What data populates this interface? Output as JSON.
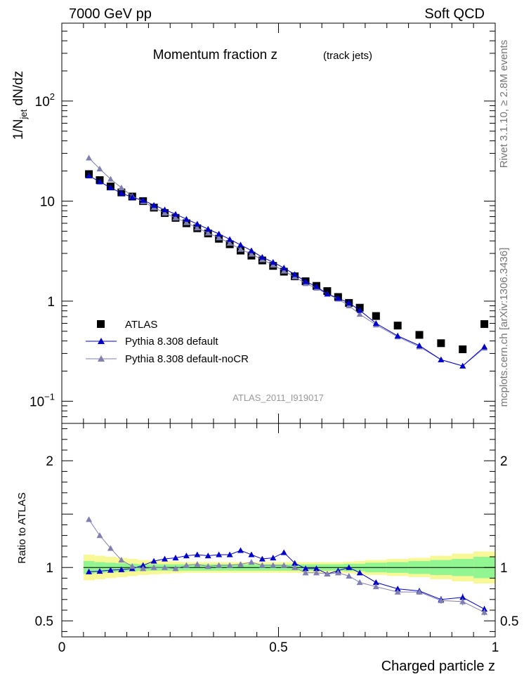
{
  "header": {
    "left": "7000 GeV pp",
    "right": "Soft QCD"
  },
  "side_text": {
    "upper": "Rivet 3.1.10, ≥ 2.8M events",
    "lower": "mcplots.cern.ch [arXiv:1306.3436]"
  },
  "colors": {
    "atlas": "#000000",
    "pythia_default": "#0000cc",
    "pythia_nocr": "#7f7fb2",
    "band_inner": "#91f691",
    "band_outer": "#f8f896"
  },
  "chart_data": [
    {
      "type": "scatter",
      "title": "Momentum fraction z",
      "subtitle": "(track jets)",
      "ylabel": "1/N_jet dN/dz",
      "watermark": "ATLAS_2011_I919017",
      "yscale": "log",
      "xlim": [
        0,
        1
      ],
      "ylim": [
        0.06,
        600
      ],
      "y_ticks": [
        {
          "value": 0.1,
          "label": "10",
          "exp": "−1"
        },
        {
          "value": 1,
          "label": "1",
          "exp": ""
        },
        {
          "value": 10,
          "label": "10",
          "exp": ""
        },
        {
          "value": 100,
          "label": "10",
          "exp": "2"
        }
      ],
      "legend_position": "bottom-left",
      "series": [
        {
          "name": "ATLAS",
          "marker": "square",
          "x": [
            0.0625,
            0.0875,
            0.1125,
            0.1375,
            0.1625,
            0.1875,
            0.2125,
            0.2375,
            0.2625,
            0.2875,
            0.3125,
            0.3375,
            0.3625,
            0.3875,
            0.4125,
            0.4375,
            0.4625,
            0.4875,
            0.5125,
            0.5375,
            0.5625,
            0.5875,
            0.6125,
            0.6375,
            0.6625,
            0.6875,
            0.725,
            0.775,
            0.825,
            0.875,
            0.925,
            0.975
          ],
          "y": [
            18.6,
            16.2,
            14.0,
            12.2,
            11.1,
            10.0,
            8.6,
            7.6,
            6.8,
            6.0,
            5.35,
            4.75,
            4.2,
            3.7,
            3.2,
            2.85,
            2.55,
            2.25,
            1.97,
            1.77,
            1.58,
            1.42,
            1.26,
            1.1,
            0.96,
            0.86,
            0.71,
            0.57,
            0.46,
            0.38,
            0.33,
            0.59
          ]
        },
        {
          "name": "Pythia 8.308 default",
          "marker": "triangle",
          "x": [
            0.0625,
            0.0875,
            0.1125,
            0.1375,
            0.1625,
            0.1875,
            0.2125,
            0.2375,
            0.2625,
            0.2875,
            0.3125,
            0.3375,
            0.3625,
            0.3875,
            0.4125,
            0.4375,
            0.4625,
            0.4875,
            0.5125,
            0.5375,
            0.5625,
            0.5875,
            0.6125,
            0.6375,
            0.6625,
            0.6875,
            0.725,
            0.775,
            0.825,
            0.875,
            0.925,
            0.975
          ],
          "y": [
            17.9,
            15.6,
            13.6,
            12.0,
            10.9,
            10.2,
            9.1,
            8.2,
            7.4,
            6.6,
            5.9,
            5.25,
            4.7,
            4.15,
            3.65,
            3.2,
            2.75,
            2.45,
            2.15,
            1.85,
            1.57,
            1.4,
            1.18,
            1.07,
            0.96,
            0.81,
            0.6,
            0.45,
            0.36,
            0.26,
            0.225,
            0.35
          ]
        },
        {
          "name": "Pythia 8.308 default-noCR",
          "marker": "triangle",
          "x": [
            0.0625,
            0.0875,
            0.1125,
            0.1375,
            0.1625,
            0.1875,
            0.2125,
            0.2375,
            0.2625,
            0.2875,
            0.3125,
            0.3375,
            0.3625,
            0.3875,
            0.4125,
            0.4375,
            0.4625,
            0.4875,
            0.5125,
            0.5375,
            0.5625,
            0.5875,
            0.6125,
            0.6375,
            0.6625,
            0.6875,
            0.725,
            0.775,
            0.825,
            0.875,
            0.925,
            0.975
          ],
          "y": [
            27.0,
            21.0,
            16.6,
            13.6,
            11.2,
            9.9,
            8.6,
            7.6,
            6.8,
            6.1,
            5.4,
            4.8,
            4.3,
            3.8,
            3.3,
            2.95,
            2.6,
            2.3,
            2.0,
            1.75,
            1.5,
            1.35,
            1.18,
            1.05,
            0.9,
            0.74,
            0.58,
            0.44,
            0.35,
            0.26,
            0.225,
            0.34
          ]
        }
      ]
    },
    {
      "type": "scatter",
      "ylabel": "Ratio to ATLAS",
      "xlabel": "Charged particle z",
      "xlim": [
        0,
        1
      ],
      "ylim": [
        0.35,
        2.35
      ],
      "x_ticks": [
        {
          "value": 0,
          "label": "0"
        },
        {
          "value": 0.5,
          "label": "0.5"
        },
        {
          "value": 1,
          "label": "1"
        }
      ],
      "y_ticks": [
        {
          "value": 0.5,
          "label": "0.5"
        },
        {
          "value": 1,
          "label": "1"
        },
        {
          "value": 2,
          "label": "2"
        }
      ],
      "band_edges": [
        0.05,
        0.075,
        0.1,
        0.125,
        0.15,
        0.175,
        0.2,
        0.225,
        0.25,
        0.275,
        0.3,
        0.325,
        0.35,
        0.375,
        0.4,
        0.425,
        0.45,
        0.475,
        0.5,
        0.525,
        0.55,
        0.575,
        0.6,
        0.625,
        0.65,
        0.675,
        0.7,
        0.75,
        0.8,
        0.85,
        0.9,
        0.95,
        1.0
      ],
      "band_inner": [
        0.06,
        0.05,
        0.045,
        0.04,
        0.035,
        0.03,
        0.03,
        0.03,
        0.03,
        0.03,
        0.03,
        0.03,
        0.03,
        0.03,
        0.03,
        0.03,
        0.03,
        0.03,
        0.03,
        0.03,
        0.03,
        0.03,
        0.03,
        0.03,
        0.035,
        0.035,
        0.045,
        0.05,
        0.06,
        0.07,
        0.08,
        0.1
      ],
      "band_outer": [
        0.12,
        0.11,
        0.1,
        0.09,
        0.08,
        0.07,
        0.065,
        0.06,
        0.055,
        0.05,
        0.05,
        0.05,
        0.05,
        0.05,
        0.05,
        0.05,
        0.05,
        0.05,
        0.05,
        0.05,
        0.05,
        0.05,
        0.05,
        0.05,
        0.055,
        0.06,
        0.07,
        0.08,
        0.09,
        0.11,
        0.13,
        0.15
      ],
      "series": [
        {
          "name": "Pythia 8.308 default",
          "x": [
            0.0625,
            0.0875,
            0.1125,
            0.1375,
            0.1625,
            0.1875,
            0.2125,
            0.2375,
            0.2625,
            0.2875,
            0.3125,
            0.3375,
            0.3625,
            0.3875,
            0.4125,
            0.4375,
            0.4625,
            0.4875,
            0.5125,
            0.5375,
            0.5625,
            0.5875,
            0.6125,
            0.6375,
            0.6625,
            0.6875,
            0.725,
            0.775,
            0.825,
            0.875,
            0.925,
            0.975
          ],
          "y": [
            0.96,
            0.965,
            0.975,
            0.98,
            0.99,
            1.02,
            1.06,
            1.08,
            1.09,
            1.11,
            1.12,
            1.11,
            1.12,
            1.12,
            1.16,
            1.12,
            1.08,
            1.09,
            1.14,
            1.04,
            0.99,
            0.99,
            0.94,
            0.97,
            1.0,
            0.95,
            0.86,
            0.8,
            0.78,
            0.7,
            0.72,
            0.61
          ],
          "err": [
            0.01,
            0.01,
            0.01,
            0.01,
            0.01,
            0.01,
            0.01,
            0.01,
            0.01,
            0.01,
            0.01,
            0.01,
            0.01,
            0.01,
            0.01,
            0.01,
            0.01,
            0.01,
            0.01,
            0.01,
            0.015,
            0.015,
            0.015,
            0.02,
            0.02,
            0.02,
            0.02,
            0.02,
            0.025,
            0.03,
            0.035,
            0.03
          ]
        },
        {
          "name": "Pythia 8.308 default-noCR",
          "x": [
            0.0625,
            0.0875,
            0.1125,
            0.1375,
            0.1625,
            0.1875,
            0.2125,
            0.2375,
            0.2625,
            0.2875,
            0.3125,
            0.3375,
            0.3625,
            0.3875,
            0.4125,
            0.4375,
            0.4625,
            0.4875,
            0.5125,
            0.5375,
            0.5625,
            0.5875,
            0.6125,
            0.6375,
            0.6625,
            0.6875,
            0.725,
            0.775,
            0.825,
            0.875,
            0.925,
            0.975
          ],
          "y": [
            1.45,
            1.3,
            1.18,
            1.07,
            1.01,
            0.99,
            1.0,
            1.0,
            0.99,
            1.02,
            1.03,
            1.01,
            1.02,
            1.02,
            1.03,
            1.05,
            1.02,
            1.02,
            1.02,
            1.0,
            0.95,
            0.95,
            0.94,
            0.95,
            0.92,
            0.86,
            0.82,
            0.77,
            0.77,
            0.69,
            0.68,
            0.58
          ],
          "err": [
            0.01,
            0.01,
            0.01,
            0.01,
            0.01,
            0.01,
            0.01,
            0.01,
            0.01,
            0.01,
            0.01,
            0.01,
            0.01,
            0.01,
            0.01,
            0.01,
            0.01,
            0.01,
            0.01,
            0.01,
            0.015,
            0.015,
            0.015,
            0.02,
            0.02,
            0.02,
            0.02,
            0.02,
            0.025,
            0.03,
            0.035,
            0.03
          ]
        }
      ]
    }
  ]
}
